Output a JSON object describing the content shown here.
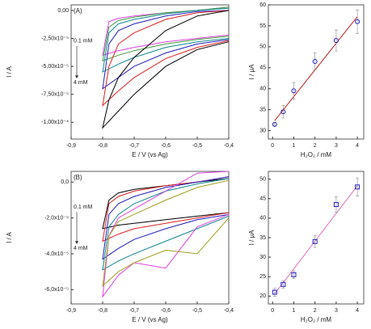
{
  "chart_data": [
    {
      "type": "line",
      "annotations": [
        "(A)",
        "0.1 mM",
        "4 mM"
      ],
      "xlabel": "E / V (vs Ag)",
      "ylabel": "I / A",
      "x": [
        -0.4,
        -0.5,
        -0.6,
        -0.7,
        -0.75,
        -0.8,
        -0.78,
        -0.75,
        -0.7,
        -0.6,
        -0.5,
        -0.4
      ],
      "xlim": [
        -0.9,
        -0.4
      ],
      "xticks": [
        {
          "value": -0.9,
          "label": "-0,9"
        },
        {
          "value": -0.8,
          "label": "-0,8"
        },
        {
          "value": -0.7,
          "label": "-0,7"
        },
        {
          "value": -0.6,
          "label": "-0,6"
        },
        {
          "value": -0.5,
          "label": "-0,5"
        },
        {
          "value": -0.4,
          "label": "-0,4"
        }
      ],
      "ylim": [
        -0.000115,
        5e-06
      ],
      "yticks": [
        {
          "value": 0,
          "label": "0,00"
        },
        {
          "value": -2.5e-05,
          "label": "-2,50x10⁻⁵"
        },
        {
          "value": -5e-05,
          "label": "-5,00x10⁻⁵"
        },
        {
          "value": -7.5e-05,
          "label": "-7,50x10⁻⁵"
        },
        {
          "value": -0.0001,
          "label": "-1,00x10⁻⁴"
        }
      ],
      "series": [
        {
          "color": "#e040e0",
          "values": [
            -2.2e-05,
            -2.5e-05,
            -2.8e-05,
            -3.3e-05,
            -3.6e-05,
            -4e-05,
            -1e-05,
            -7e-06,
            -5e-06,
            -2e-06,
            0,
            3e-06
          ]
        },
        {
          "color": "#40a040",
          "values": [
            -2.3e-05,
            -2.6e-05,
            -3e-05,
            -3.6e-05,
            -4e-05,
            -4.5e-05,
            -1.5e-05,
            -9e-06,
            -6e-06,
            -2e-06,
            0,
            3e-06
          ]
        },
        {
          "color": "#108890",
          "values": [
            -2.5e-05,
            -2.8e-05,
            -3.3e-05,
            -4.2e-05,
            -4.8e-05,
            -5.5e-05,
            -2e-05,
            -1.2e-05,
            -8e-06,
            -3e-06,
            0,
            2e-06
          ]
        },
        {
          "color": "#2020c0",
          "values": [
            -2.6e-05,
            -3e-05,
            -3.8e-05,
            -5e-05,
            -6e-05,
            -7e-05,
            -3e-05,
            -1.8e-05,
            -1.2e-05,
            -5e-06,
            -1e-06,
            0
          ]
        },
        {
          "color": "#e02020",
          "values": [
            -2.7e-05,
            -3.3e-05,
            -4.3e-05,
            -6e-05,
            -7.2e-05,
            -8.5e-05,
            -5e-05,
            -3e-05,
            -2e-05,
            -8e-06,
            -2e-06,
            0
          ]
        },
        {
          "color": "#000000",
          "values": [
            -2.8e-05,
            -3.5e-05,
            -5e-05,
            -7.5e-05,
            -9e-05,
            -0.000105,
            -8e-05,
            -6e-05,
            -4.2e-05,
            -1.8e-05,
            -5e-06,
            0
          ]
        }
      ]
    },
    {
      "type": "scatter",
      "xlabel": "H₂O₂ / mM",
      "ylabel": "I / μA",
      "marker": "circle",
      "color": "#2020c0",
      "fit_color": "#c02020",
      "x": [
        0.1,
        0.5,
        1,
        2,
        3,
        4
      ],
      "values": [
        31.5,
        34.5,
        39.5,
        46.5,
        51.5,
        56
      ],
      "errors": [
        0.3,
        1.5,
        2,
        2,
        2.5,
        2.8
      ],
      "fit": {
        "x": [
          0.1,
          4
        ],
        "values": [
          32.4,
          57.2
        ]
      },
      "xlim": [
        -0.2,
        4.3
      ],
      "xticks": [
        0,
        1,
        2,
        3,
        4
      ],
      "ylim": [
        28,
        60
      ],
      "yticks": [
        30,
        35,
        40,
        45,
        50,
        55,
        60
      ]
    },
    {
      "type": "line",
      "annotations": [
        "(B)",
        "0.1 mM",
        "4 mM"
      ],
      "xlabel": "E / V (vs Ag)",
      "ylabel": "I / A",
      "x": [
        -0.4,
        -0.5,
        -0.6,
        -0.7,
        -0.75,
        -0.8,
        -0.78,
        -0.75,
        -0.7,
        -0.6,
        -0.5,
        -0.4
      ],
      "xlim": [
        -0.9,
        -0.4
      ],
      "xticks": [
        {
          "value": -0.9,
          "label": "-0,9"
        },
        {
          "value": -0.8,
          "label": "-0,8"
        },
        {
          "value": -0.7,
          "label": "-0,7"
        },
        {
          "value": -0.6,
          "label": "-0,6"
        },
        {
          "value": -0.5,
          "label": "-0,5"
        },
        {
          "value": -0.4,
          "label": "-0,4"
        }
      ],
      "ylim": [
        -6.8e-05,
        6e-06
      ],
      "yticks": [
        {
          "value": 0,
          "label": "0,0"
        },
        {
          "value": -2e-05,
          "label": "-2,0x10⁻⁵"
        },
        {
          "value": -4e-05,
          "label": "-4,0x10⁻⁵"
        },
        {
          "value": -6e-05,
          "label": "-6,0x10⁻⁵"
        }
      ],
      "series": [
        {
          "color": "#000000",
          "values": [
            -1.7e-05,
            -1.9e-05,
            -2.1e-05,
            -2.3e-05,
            -2.4e-05,
            -2.6e-05,
            -1e-05,
            -6e-06,
            -4e-06,
            -2e-06,
            0,
            2e-06
          ]
        },
        {
          "color": "#e02020",
          "values": [
            -1.7e-05,
            -2e-05,
            -2.3e-05,
            -2.6e-05,
            -2.9e-05,
            -3.3e-05,
            -1.2e-05,
            -8e-06,
            -5e-06,
            -2e-06,
            0,
            3e-06
          ]
        },
        {
          "color": "#2020c0",
          "values": [
            -1.8e-05,
            -2.1e-05,
            -2.6e-05,
            -3.2e-05,
            -3.7e-05,
            -4.3e-05,
            -1.8e-05,
            -1.2e-05,
            -8e-06,
            -3e-06,
            0,
            3e-06
          ]
        },
        {
          "color": "#108890",
          "values": [
            -1.9e-05,
            -2.6e-05,
            -3.3e-05,
            -4e-05,
            -4.4e-05,
            -4.9e-05,
            -2.5e-05,
            -1.8e-05,
            -1.2e-05,
            -5e-06,
            -1e-06,
            2e-06
          ]
        },
        {
          "color": "#e040e0",
          "values": [
            -1.8e-05,
            -2.5e-05,
            -4.8e-05,
            -4.5e-05,
            -5.2e-05,
            -6.4e-05,
            -3e-05,
            -2e-05,
            -1.5e-05,
            -5e-06,
            5e-06,
            6e-06
          ]
        },
        {
          "color": "#a0a020",
          "values": [
            -2e-05,
            -4e-05,
            -3.8e-05,
            -4.5e-05,
            -5e-05,
            -5.8e-05,
            -3e-05,
            -2.2e-05,
            -1.8e-05,
            -1e-05,
            -3e-06,
            1e-06
          ]
        }
      ]
    },
    {
      "type": "scatter",
      "xlabel": "H₂O₂ / mM",
      "ylabel": "I / μA",
      "marker": "square",
      "color": "#2020c0",
      "fit_color": "#e070c0",
      "x": [
        0.1,
        0.5,
        1,
        2,
        3,
        4
      ],
      "values": [
        21,
        23,
        25.5,
        34,
        43.5,
        48
      ],
      "errors": [
        1,
        1,
        1,
        1.5,
        2,
        2.3
      ],
      "fit": {
        "x": [
          0.1,
          4
        ],
        "values": [
          20.6,
          48.3
        ]
      },
      "xlim": [
        -0.2,
        4.3
      ],
      "xticks": [
        0,
        1,
        2,
        3,
        4
      ],
      "ylim": [
        18,
        52
      ],
      "yticks": [
        20,
        25,
        30,
        35,
        40,
        45,
        50
      ]
    }
  ]
}
